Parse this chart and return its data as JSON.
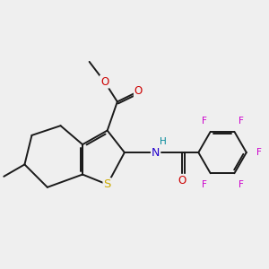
{
  "background_color": "#efefef",
  "fig_size": [
    3.0,
    3.0
  ],
  "dpi": 100,
  "bond_color": "#1a1a1a",
  "bond_lw": 1.4,
  "S_color": "#ccaa00",
  "N_color": "#2200cc",
  "O_color": "#cc0000",
  "F_color": "#cc00cc",
  "H_color": "#008899",
  "C_color": "#1a1a1a",
  "dbo": 0.055,
  "xlim": [
    0.5,
    7.2
  ],
  "ylim": [
    1.4,
    6.2
  ]
}
